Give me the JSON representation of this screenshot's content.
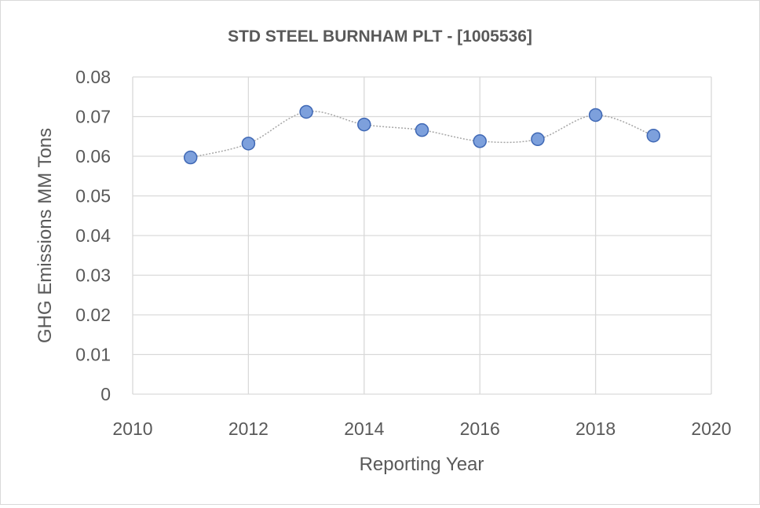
{
  "chart_data": {
    "type": "scatter",
    "title": "STD STEEL BURNHAM PLT - [1005536]",
    "xlabel": "Reporting Year",
    "ylabel": "GHG Emissions MM Tons",
    "xlim": [
      2010,
      2020
    ],
    "ylim": [
      0,
      0.08
    ],
    "x_ticks": [
      "2010",
      "2012",
      "2014",
      "2016",
      "2018",
      "2020"
    ],
    "y_ticks": [
      "0",
      "0.01",
      "0.02",
      "0.03",
      "0.04",
      "0.05",
      "0.06",
      "0.07",
      "0.08"
    ],
    "grid": true,
    "legend": "none",
    "trendline": "smoothed dotted",
    "series": [
      {
        "x": [
          2011,
          2012,
          2013,
          2014,
          2015,
          2016,
          2017,
          2018,
          2019
        ],
        "y": [
          0.0597,
          0.0632,
          0.0712,
          0.068,
          0.0666,
          0.0638,
          0.0643,
          0.0704,
          0.0652
        ]
      }
    ],
    "colors": {
      "marker_fill": "#7da0dc",
      "marker_stroke": "#3f68b5",
      "line": "#a6a6a6",
      "grid": "#d9d9d9",
      "text": "#595959"
    }
  }
}
